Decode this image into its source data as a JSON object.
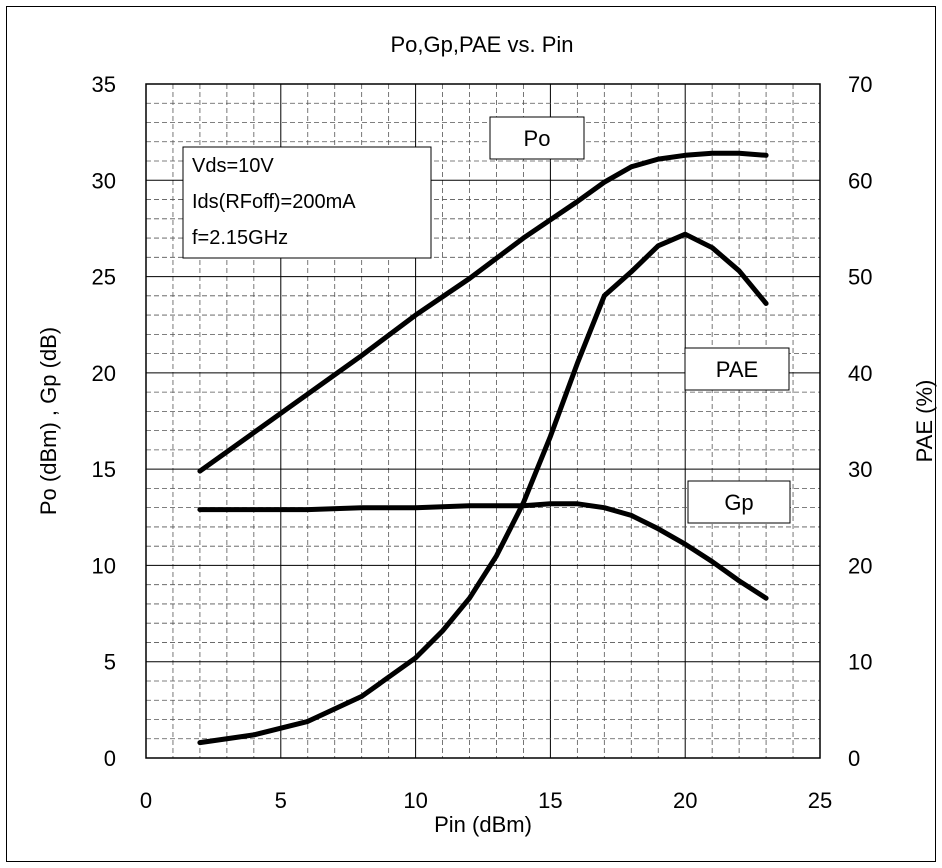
{
  "chart_data": {
    "type": "line",
    "title": "Po,Gp,PAE vs. Pin",
    "xlabel": "Pin (dBm)",
    "ylabel": "Po (dBm) , Gp (dB)",
    "y2label": "PAE (%)",
    "xlim": [
      0,
      25
    ],
    "ylim": [
      0,
      35
    ],
    "y2lim": [
      0,
      70
    ],
    "x_ticks": [
      "0",
      "5",
      "10",
      "15",
      "20",
      "25"
    ],
    "y_ticks": [
      "0",
      "5",
      "10",
      "15",
      "20",
      "25",
      "30",
      "35"
    ],
    "y2_ticks": [
      "0",
      "10",
      "20",
      "30",
      "40",
      "50",
      "60",
      "70"
    ],
    "grid": true,
    "conditions": [
      "Vds=10V",
      "Ids(RFoff)=200mA",
      "f=2.15GHz"
    ],
    "series": [
      {
        "name": "Po",
        "axis": "left",
        "x": [
          2,
          4,
          6,
          8,
          10,
          12,
          14,
          16,
          17,
          18,
          19,
          20,
          21,
          22,
          23
        ],
        "y": [
          14.9,
          16.9,
          18.9,
          20.9,
          23.0,
          24.9,
          27.0,
          28.9,
          29.9,
          30.7,
          31.1,
          31.3,
          31.4,
          31.4,
          31.3
        ]
      },
      {
        "name": "Gp",
        "axis": "left",
        "x": [
          2,
          4,
          6,
          8,
          10,
          12,
          14,
          15,
          16,
          17,
          18,
          19,
          20,
          21,
          22,
          23
        ],
        "y": [
          12.9,
          12.9,
          12.9,
          13.0,
          13.0,
          13.1,
          13.1,
          13.2,
          13.2,
          13.0,
          12.6,
          11.9,
          11.1,
          10.2,
          9.2,
          8.3
        ]
      },
      {
        "name": "PAE",
        "axis": "right",
        "x": [
          2,
          4,
          6,
          8,
          10,
          11,
          12,
          13,
          14,
          15,
          16,
          17,
          18,
          19,
          20,
          21,
          22,
          23
        ],
        "y": [
          1.6,
          2.4,
          3.8,
          6.4,
          10.4,
          13.2,
          16.6,
          21.0,
          26.5,
          33.4,
          41.0,
          48.0,
          50.5,
          53.2,
          54.4,
          53.0,
          50.6,
          47.2
        ]
      }
    ],
    "labels": [
      "Po",
      "PAE",
      "Gp"
    ]
  }
}
